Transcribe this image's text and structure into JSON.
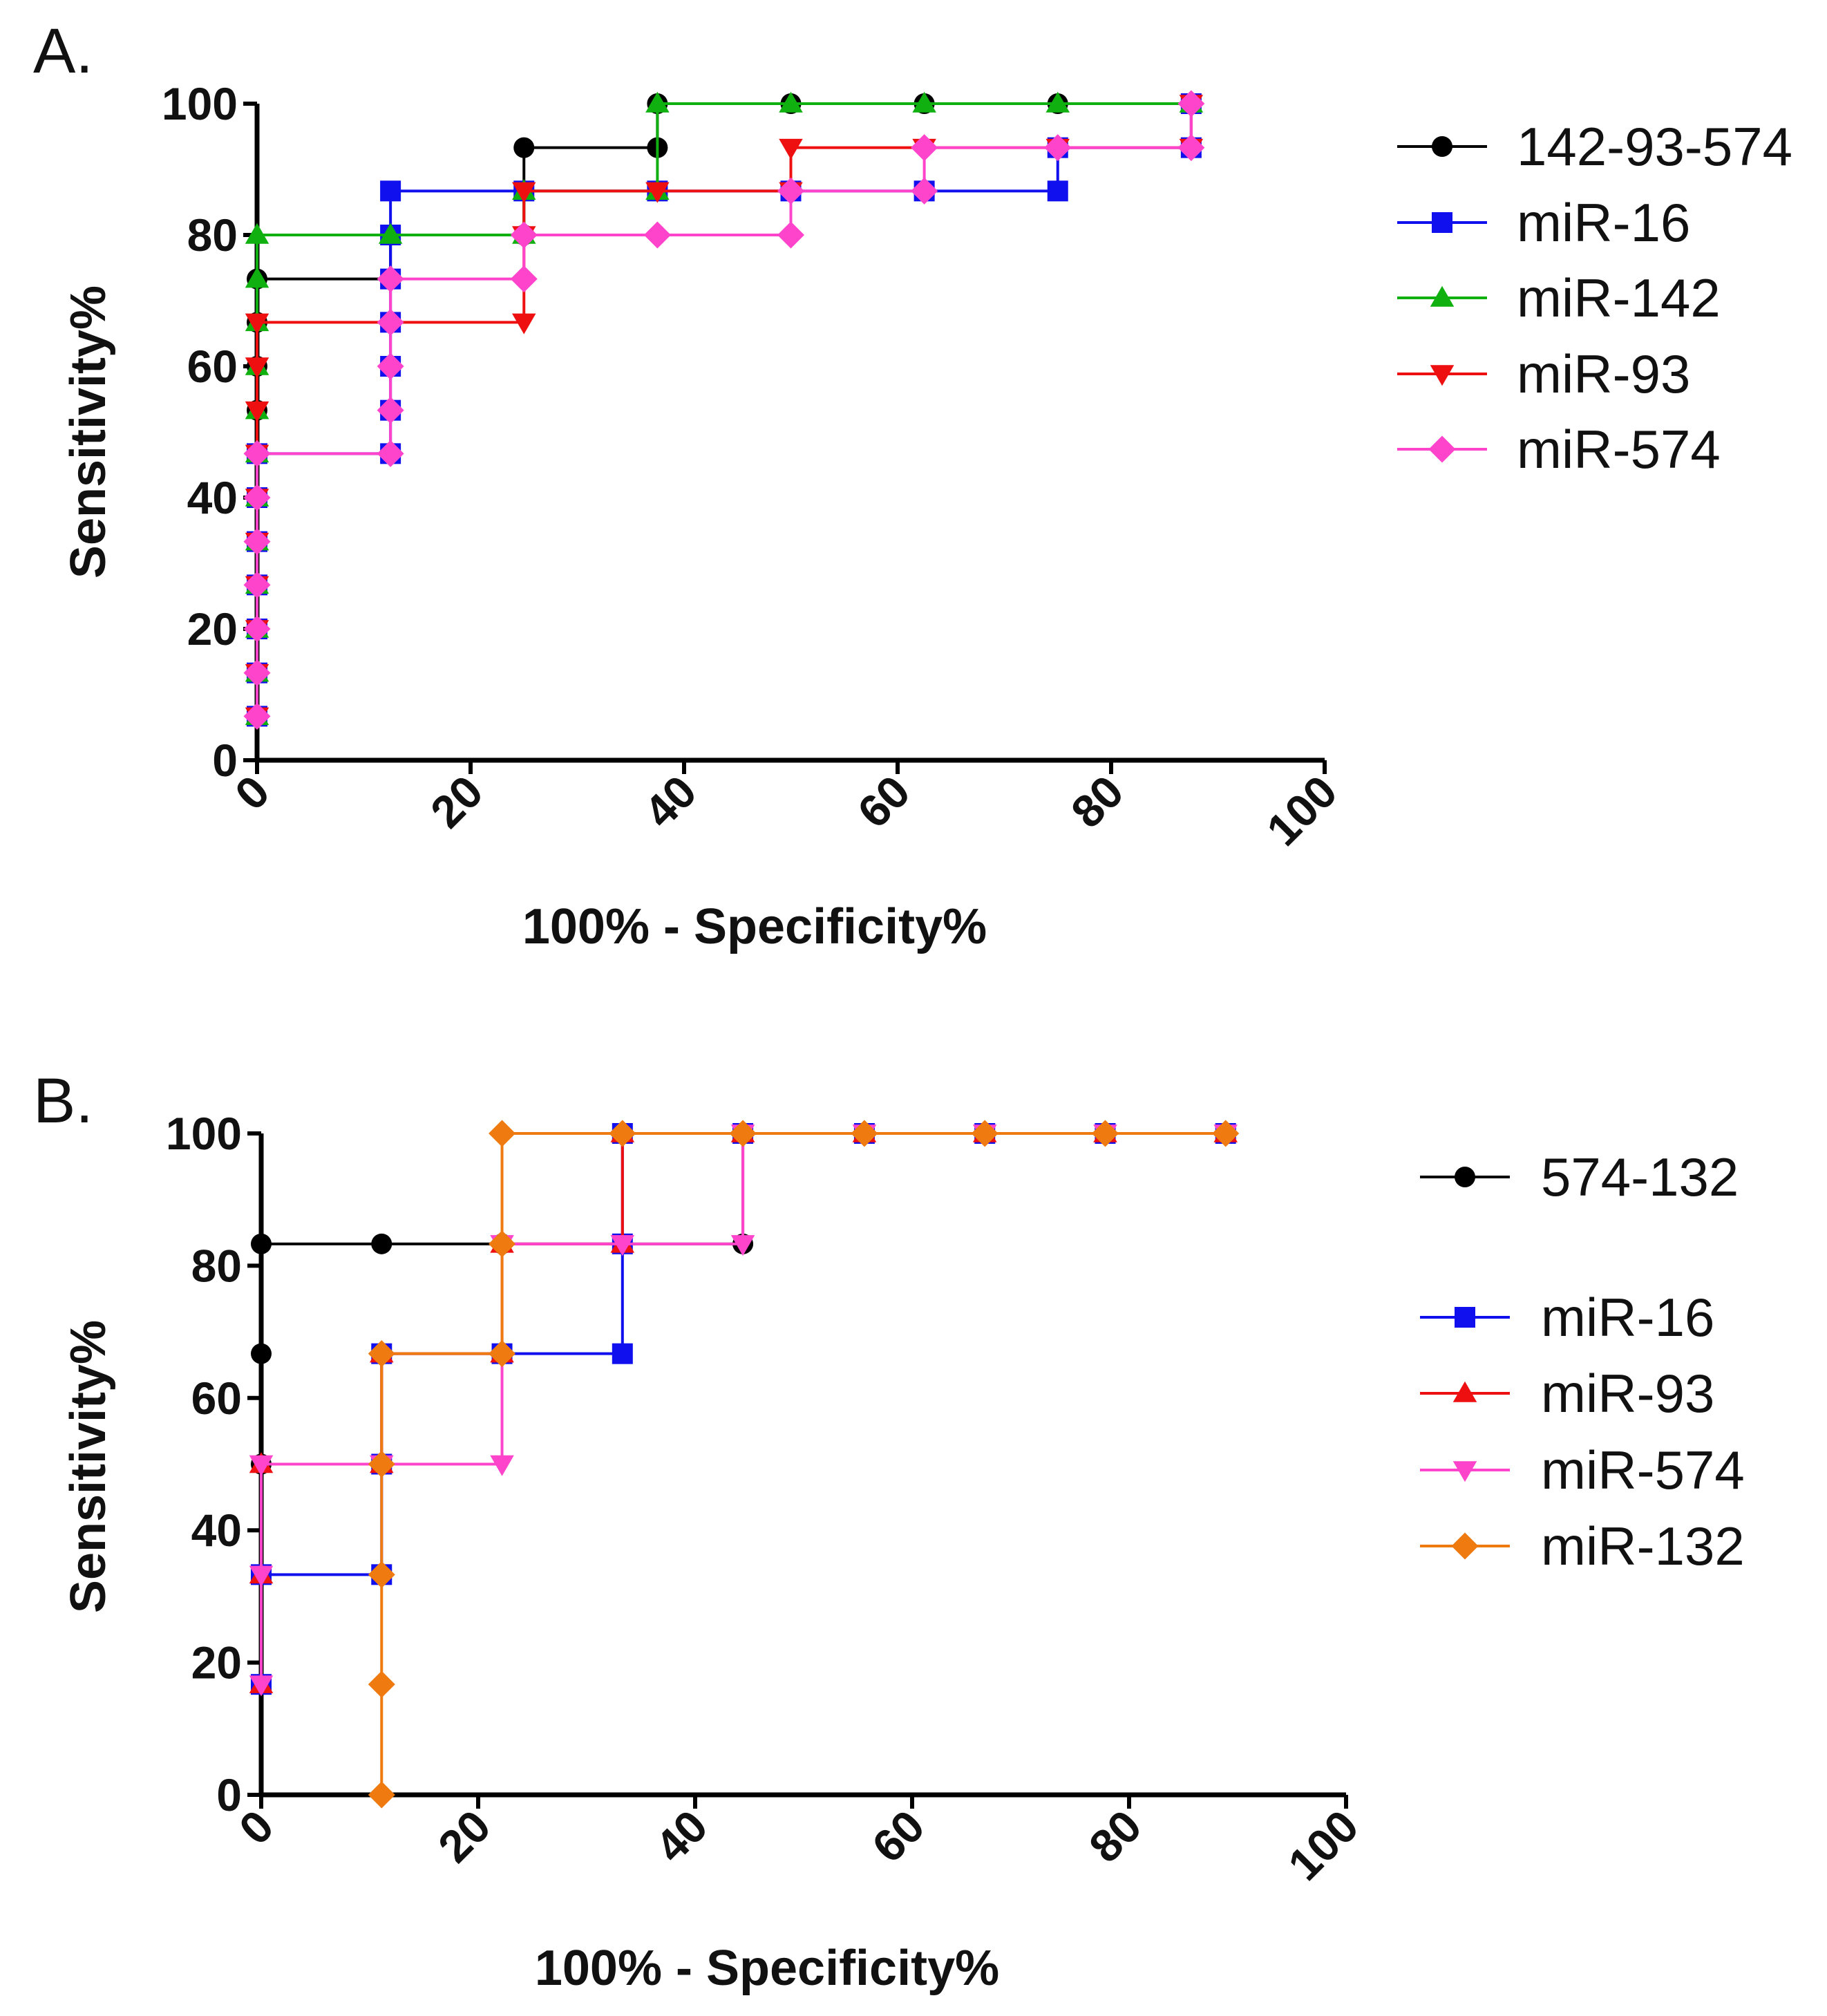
{
  "chart_data": [
    {
      "type": "line",
      "panel_label": "A.",
      "xlabel": "100% - Specificity%",
      "ylabel": "Sensitivity%",
      "xlim": [
        0,
        100
      ],
      "ylim": [
        0,
        100
      ],
      "x_ticks": [
        "0",
        "20",
        "40",
        "60",
        "80",
        "100"
      ],
      "y_ticks": [
        "0",
        "20",
        "40",
        "60",
        "80",
        "100"
      ],
      "grid": false,
      "legend_position": "right",
      "series": [
        {
          "name": "142-93-574",
          "color": "#000000",
          "marker": "circle",
          "points": [
            [
              0,
              6.7
            ],
            [
              0,
              13.3
            ],
            [
              0,
              20
            ],
            [
              0,
              26.7
            ],
            [
              0,
              33.3
            ],
            [
              0,
              40
            ],
            [
              0,
              46.7
            ],
            [
              0,
              53.3
            ],
            [
              0,
              60
            ],
            [
              0,
              66.7
            ],
            [
              0,
              73.3
            ],
            [
              12.5,
              73.3
            ],
            [
              12.5,
              80
            ],
            [
              25,
              80
            ],
            [
              25,
              86.7
            ],
            [
              25,
              93.3
            ],
            [
              37.5,
              93.3
            ],
            [
              37.5,
              100
            ],
            [
              50,
              100
            ],
            [
              62.5,
              100
            ],
            [
              75,
              100
            ],
            [
              87.5,
              100
            ]
          ]
        },
        {
          "name": "miR-16",
          "color": "#1010ee",
          "marker": "square",
          "points": [
            [
              0,
              6.7
            ],
            [
              0,
              13.3
            ],
            [
              0,
              20
            ],
            [
              0,
              26.7
            ],
            [
              0,
              33.3
            ],
            [
              0,
              40
            ],
            [
              0,
              46.7
            ],
            [
              12.5,
              46.7
            ],
            [
              12.5,
              53.3
            ],
            [
              12.5,
              60
            ],
            [
              12.5,
              66.7
            ],
            [
              12.5,
              73.3
            ],
            [
              12.5,
              80
            ],
            [
              12.5,
              86.7
            ],
            [
              25,
              86.7
            ],
            [
              37.5,
              86.7
            ],
            [
              50,
              86.7
            ],
            [
              62.5,
              86.7
            ],
            [
              75,
              86.7
            ],
            [
              75,
              93.3
            ],
            [
              87.5,
              93.3
            ],
            [
              87.5,
              100
            ]
          ]
        },
        {
          "name": "miR-142",
          "color": "#10b010",
          "marker": "triangle-up",
          "points": [
            [
              0,
              6.7
            ],
            [
              0,
              13.3
            ],
            [
              0,
              20
            ],
            [
              0,
              26.7
            ],
            [
              0,
              33.3
            ],
            [
              0,
              40
            ],
            [
              0,
              46.7
            ],
            [
              0,
              53.3
            ],
            [
              0,
              60
            ],
            [
              0,
              66.7
            ],
            [
              0,
              73.3
            ],
            [
              0,
              80
            ],
            [
              12.5,
              80
            ],
            [
              25,
              80
            ],
            [
              25,
              86.7
            ],
            [
              37.5,
              86.7
            ],
            [
              37.5,
              100
            ],
            [
              50,
              100
            ],
            [
              62.5,
              100
            ],
            [
              75,
              100
            ],
            [
              87.5,
              100
            ]
          ]
        },
        {
          "name": "miR-93",
          "color": "#ee1010",
          "marker": "triangle-down",
          "points": [
            [
              0,
              6.7
            ],
            [
              0,
              13.3
            ],
            [
              0,
              20
            ],
            [
              0,
              26.7
            ],
            [
              0,
              33.3
            ],
            [
              0,
              40
            ],
            [
              0,
              46.7
            ],
            [
              0,
              53.3
            ],
            [
              0,
              60
            ],
            [
              0,
              66.7
            ],
            [
              25,
              66.7
            ],
            [
              25,
              80
            ],
            [
              25,
              86.7
            ],
            [
              37.5,
              86.7
            ],
            [
              50,
              86.7
            ],
            [
              50,
              93.3
            ],
            [
              62.5,
              93.3
            ],
            [
              75,
              93.3
            ],
            [
              87.5,
              93.3
            ],
            [
              87.5,
              100
            ]
          ]
        },
        {
          "name": "miR-574",
          "color": "#ff44cc",
          "marker": "diamond",
          "points": [
            [
              0,
              6.7
            ],
            [
              0,
              13.3
            ],
            [
              0,
              20
            ],
            [
              0,
              26.7
            ],
            [
              0,
              33.3
            ],
            [
              0,
              40
            ],
            [
              0,
              46.7
            ],
            [
              12.5,
              46.7
            ],
            [
              12.5,
              53.3
            ],
            [
              12.5,
              60
            ],
            [
              12.5,
              66.7
            ],
            [
              12.5,
              73.3
            ],
            [
              25,
              73.3
            ],
            [
              25,
              80
            ],
            [
              37.5,
              80
            ],
            [
              50,
              80
            ],
            [
              50,
              86.7
            ],
            [
              62.5,
              86.7
            ],
            [
              62.5,
              93.3
            ],
            [
              75,
              93.3
            ],
            [
              87.5,
              93.3
            ],
            [
              87.5,
              100
            ]
          ]
        }
      ]
    },
    {
      "type": "line",
      "panel_label": "B.",
      "xlabel": "100% - Specificity%",
      "ylabel": "Sensitivity%",
      "xlim": [
        0,
        100
      ],
      "ylim": [
        0,
        100
      ],
      "x_ticks": [
        "0",
        "20",
        "40",
        "60",
        "80",
        "100"
      ],
      "y_ticks": [
        "0",
        "20",
        "40",
        "60",
        "80",
        "100"
      ],
      "grid": false,
      "legend_position": "right",
      "series": [
        {
          "name": "574-132",
          "color": "#000000",
          "marker": "circle",
          "points": [
            [
              0,
              16.7
            ],
            [
              0,
              33.3
            ],
            [
              0,
              50
            ],
            [
              0,
              66.7
            ],
            [
              0,
              83.3
            ],
            [
              11.1,
              83.3
            ],
            [
              22.2,
              83.3
            ],
            [
              33.3,
              83.3
            ],
            [
              44.4,
              83.3
            ],
            [
              44.4,
              100
            ],
            [
              55.6,
              100
            ],
            [
              66.7,
              100
            ],
            [
              77.8,
              100
            ],
            [
              88.9,
              100
            ]
          ]
        },
        {
          "name": "miR-16",
          "color": "#1010ee",
          "marker": "square",
          "points": [
            [
              0,
              16.7
            ],
            [
              0,
              33.3
            ],
            [
              11.1,
              33.3
            ],
            [
              11.1,
              50
            ],
            [
              11.1,
              66.7
            ],
            [
              22.2,
              66.7
            ],
            [
              33.3,
              66.7
            ],
            [
              33.3,
              83.3
            ],
            [
              33.3,
              100
            ],
            [
              44.4,
              100
            ],
            [
              55.6,
              100
            ],
            [
              66.7,
              100
            ],
            [
              77.8,
              100
            ],
            [
              88.9,
              100
            ]
          ]
        },
        {
          "name": "miR-93",
          "color": "#ee1010",
          "marker": "triangle-up",
          "points": [
            [
              0,
              16.7
            ],
            [
              0,
              33.3
            ],
            [
              0,
              50
            ],
            [
              11.1,
              50
            ],
            [
              11.1,
              66.7
            ],
            [
              22.2,
              66.7
            ],
            [
              22.2,
              83.3
            ],
            [
              33.3,
              83.3
            ],
            [
              33.3,
              100
            ],
            [
              44.4,
              100
            ],
            [
              55.6,
              100
            ],
            [
              66.7,
              100
            ],
            [
              77.8,
              100
            ],
            [
              88.9,
              100
            ]
          ]
        },
        {
          "name": "miR-574",
          "color": "#ff44cc",
          "marker": "triangle-down",
          "points": [
            [
              0,
              16.7
            ],
            [
              0,
              33.3
            ],
            [
              0,
              50
            ],
            [
              11.1,
              50
            ],
            [
              22.2,
              50
            ],
            [
              22.2,
              83.3
            ],
            [
              33.3,
              83.3
            ],
            [
              44.4,
              83.3
            ],
            [
              44.4,
              100
            ],
            [
              55.6,
              100
            ],
            [
              66.7,
              100
            ],
            [
              77.8,
              100
            ],
            [
              88.9,
              100
            ]
          ]
        },
        {
          "name": "miR-132",
          "color": "#ee7a10",
          "marker": "diamond",
          "points": [
            [
              11.1,
              0
            ],
            [
              11.1,
              16.7
            ],
            [
              11.1,
              33.3
            ],
            [
              11.1,
              50
            ],
            [
              11.1,
              66.7
            ],
            [
              22.2,
              66.7
            ],
            [
              22.2,
              83.3
            ],
            [
              22.2,
              100
            ],
            [
              33.3,
              100
            ],
            [
              44.4,
              100
            ],
            [
              55.6,
              100
            ],
            [
              66.7,
              100
            ],
            [
              77.8,
              100
            ],
            [
              88.9,
              100
            ]
          ]
        }
      ]
    }
  ]
}
